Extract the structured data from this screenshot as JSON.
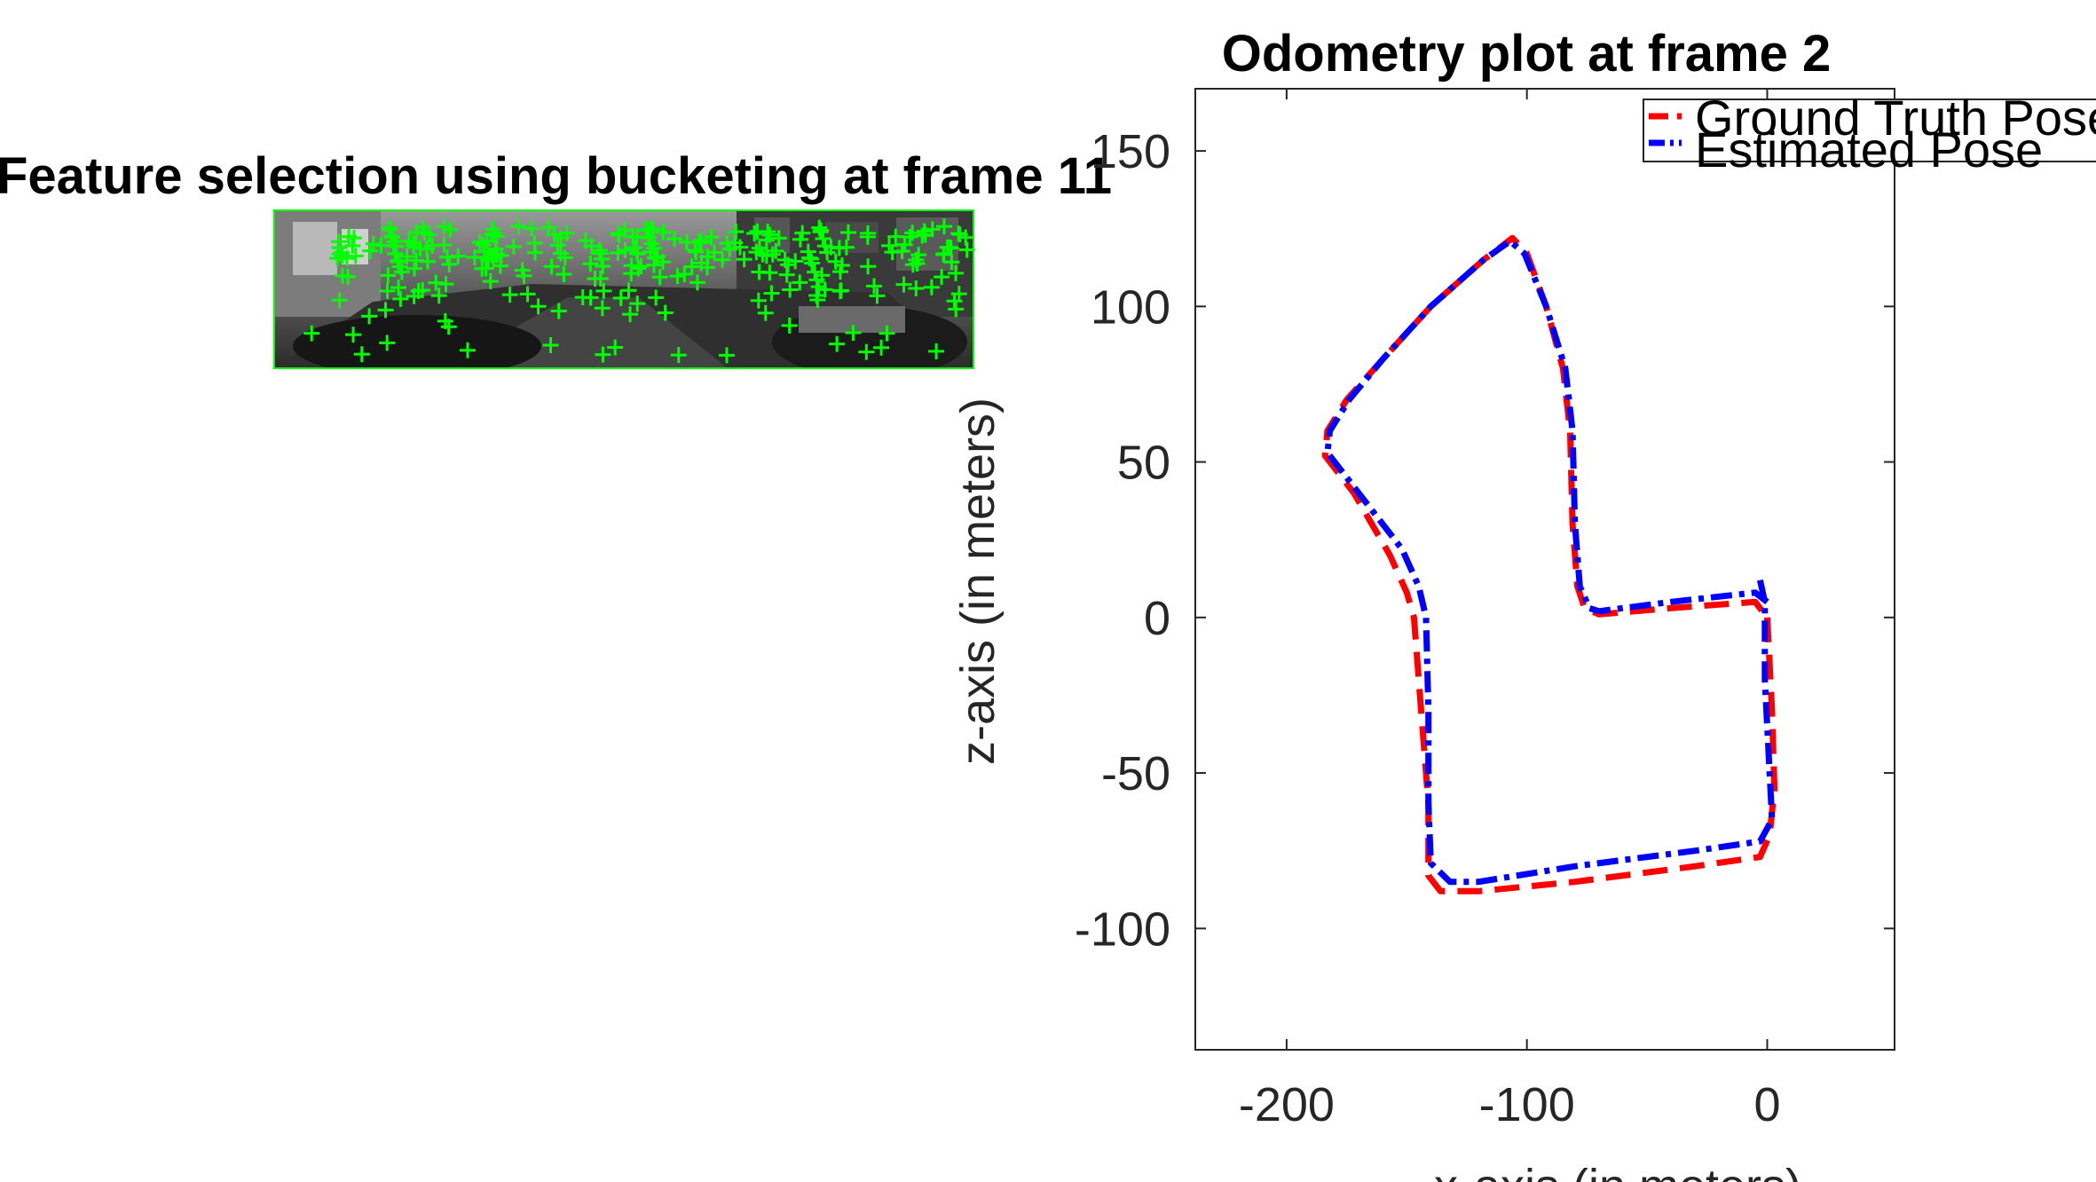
{
  "chart_data": [
    {
      "type": "image",
      "title": "Feature selection using bucketing at frame 11",
      "marker_color": "#00ff00",
      "marker": "plus"
    },
    {
      "type": "line",
      "title": "Odometry plot at frame 2",
      "xlabel": "x-axis (in meters)",
      "ylabel": "z-axis (in meters)",
      "xlim": [
        -238,
        53
      ],
      "ylim": [
        -139,
        170
      ],
      "xticks": [
        -200,
        -100,
        0
      ],
      "yticks": [
        -100,
        -50,
        0,
        50,
        100,
        150
      ],
      "xtick_labels": [
        "-200",
        "-100",
        "0"
      ],
      "ytick_labels": [
        "-100",
        "-50",
        "0",
        "50",
        "100",
        "150"
      ],
      "grid": false,
      "legend_position": "top-right",
      "series": [
        {
          "name": "Ground Truth Pose",
          "color": "#ff0000",
          "style": "dashed",
          "points": [
            [
              0,
              0
            ],
            [
              2,
              -30
            ],
            [
              3,
              -55
            ],
            [
              1,
              -70
            ],
            [
              -3,
              -77
            ],
            [
              -30,
              -80
            ],
            [
              -80,
              -85
            ],
            [
              -120,
              -88
            ],
            [
              -136,
              -88
            ],
            [
              -141,
              -83
            ],
            [
              -141,
              -60
            ],
            [
              -144,
              -30
            ],
            [
              -147,
              0
            ],
            [
              -150,
              8
            ],
            [
              -157,
              20
            ],
            [
              -172,
              40
            ],
            [
              -184,
              52
            ],
            [
              -183,
              60
            ],
            [
              -175,
              70
            ],
            [
              -160,
              83
            ],
            [
              -140,
              100
            ],
            [
              -118,
              115
            ],
            [
              -106,
              122
            ],
            [
              -100,
              117
            ],
            [
              -92,
              100
            ],
            [
              -85,
              80
            ],
            [
              -82,
              60
            ],
            [
              -81,
              30
            ],
            [
              -79,
              10
            ],
            [
              -76,
              3
            ],
            [
              -70,
              1
            ],
            [
              -40,
              3
            ],
            [
              -5,
              5
            ],
            [
              0,
              0
            ]
          ]
        },
        {
          "name": "Estimated Pose",
          "color": "#0000ff",
          "style": "dashdot",
          "points": [
            [
              -3,
              12
            ],
            [
              -1,
              5
            ],
            [
              -1,
              -20
            ],
            [
              1,
              -50
            ],
            [
              2,
              -65
            ],
            [
              -3,
              -72
            ],
            [
              -30,
              -75
            ],
            [
              -80,
              -80
            ],
            [
              -120,
              -85
            ],
            [
              -132,
              -85
            ],
            [
              -140,
              -79
            ],
            [
              -141,
              -60
            ],
            [
              -141,
              -30
            ],
            [
              -142,
              0
            ],
            [
              -145,
              10
            ],
            [
              -152,
              22
            ],
            [
              -170,
              40
            ],
            [
              -183,
              53
            ],
            [
              -182,
              60
            ],
            [
              -174,
              70
            ],
            [
              -160,
              83
            ],
            [
              -140,
              100
            ],
            [
              -118,
              115
            ],
            [
              -107,
              121
            ],
            [
              -101,
              117
            ],
            [
              -92,
              100
            ],
            [
              -84,
              80
            ],
            [
              -81,
              60
            ],
            [
              -80,
              30
            ],
            [
              -78,
              10
            ],
            [
              -74,
              3
            ],
            [
              -70,
              2
            ],
            [
              -40,
              5
            ],
            [
              -5,
              8
            ],
            [
              0,
              5
            ]
          ]
        }
      ]
    }
  ]
}
